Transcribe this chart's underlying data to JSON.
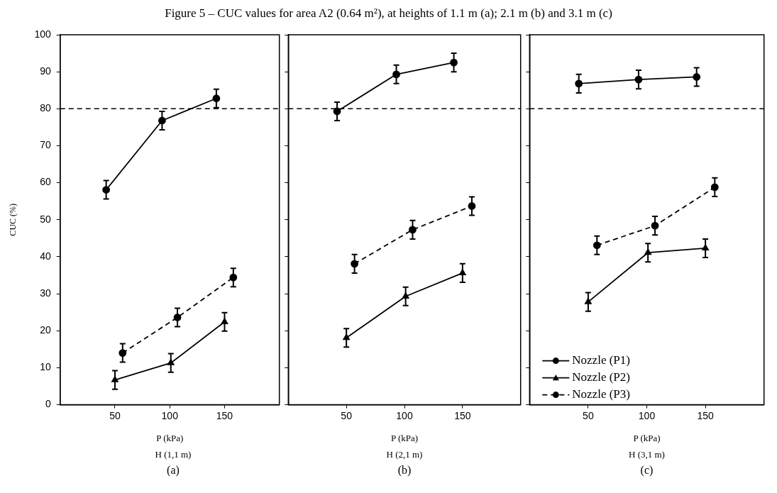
{
  "chart_data": [
    {
      "type": "line",
      "title": "Figure 5 – CUC values for area A2 (0.64 m²), at heights of 1.1 m (a); 2.1 m (b) and 3.1 m (c)",
      "xlabel": "P (kPa)",
      "ylabel": "CUC (%)",
      "annotations": [
        "H (1,1 m)",
        "(a)"
      ],
      "xlim": [
        0,
        200
      ],
      "xticks": [
        50,
        100,
        150
      ],
      "ylim": [
        0,
        100
      ],
      "yticks": [
        0,
        10,
        20,
        30,
        40,
        50,
        60,
        70,
        80,
        90,
        100
      ],
      "ref_lines": [
        {
          "axis": "y",
          "value": 80,
          "line_style": "dashed"
        }
      ],
      "series": [
        {
          "color": "#000000",
          "marker": "circle",
          "line_style": "solid",
          "x": [
            42,
            93,
            142.5
          ],
          "values": [
            58.1,
            76.8,
            82.8
          ],
          "errors": [
            2.5,
            2.5,
            2.5
          ]
        },
        {
          "color": "#000000",
          "marker": "triangle",
          "line_style": "solid",
          "x": [
            50,
            101,
            150
          ],
          "values": [
            6.7,
            11.3,
            22.4
          ],
          "errors": [
            2.5,
            2.5,
            2.5
          ]
        },
        {
          "color": "#000000",
          "marker": "circle",
          "line_style": "dashed",
          "x": [
            57,
            107,
            158
          ],
          "values": [
            14,
            23.6,
            34.4
          ],
          "errors": [
            2.5,
            2.5,
            2.5
          ]
        }
      ]
    },
    {
      "type": "line",
      "xlabel": "P (kPa)",
      "annotations": [
        "H (2,1 m)",
        "(b)"
      ],
      "xlim": [
        0,
        200
      ],
      "xticks": [
        50,
        100,
        150
      ],
      "ylim": [
        0,
        100
      ],
      "yticks": [
        0,
        10,
        20,
        30,
        40,
        50,
        60,
        70,
        80,
        90,
        100
      ],
      "tick_labels": "x",
      "ref_lines": [
        {
          "axis": "y",
          "value": 80,
          "line_style": "dashed"
        }
      ],
      "series": [
        {
          "color": "#000000",
          "marker": "circle",
          "line_style": "solid",
          "x": [
            42,
            93,
            142.5
          ],
          "values": [
            79.3,
            89.3,
            92.5
          ],
          "errors": [
            2.5,
            2.5,
            2.5
          ]
        },
        {
          "color": "#000000",
          "marker": "triangle",
          "line_style": "solid",
          "x": [
            50,
            101,
            150
          ],
          "values": [
            18.1,
            29.3,
            35.6
          ],
          "errors": [
            2.5,
            2.5,
            2.5
          ]
        },
        {
          "color": "#000000",
          "marker": "circle",
          "line_style": "dashed",
          "x": [
            57,
            107,
            158
          ],
          "values": [
            38.1,
            47.3,
            53.7
          ],
          "errors": [
            2.5,
            2.5,
            2.5
          ]
        }
      ]
    },
    {
      "type": "line",
      "xlabel": "P (kPa)",
      "annotations": [
        "H (3,1 m)",
        "(c)"
      ],
      "xlim": [
        0,
        200
      ],
      "xticks": [
        50,
        100,
        150
      ],
      "ylim": [
        0,
        100
      ],
      "yticks": [
        0,
        10,
        20,
        30,
        40,
        50,
        60,
        70,
        80,
        90,
        100
      ],
      "tick_labels": "x",
      "legend": "bottom left",
      "ref_lines": [
        {
          "axis": "y",
          "value": 80,
          "line_style": "dashed"
        }
      ],
      "series": [
        {
          "name": "Nozzle (P1)",
          "color": "#000000",
          "marker": "circle",
          "line_style": "solid",
          "x": [
            42,
            93,
            142.5
          ],
          "values": [
            86.8,
            87.9,
            88.6
          ],
          "errors": [
            2.5,
            2.5,
            2.5
          ]
        },
        {
          "name": "Nozzle (P2)",
          "color": "#000000",
          "marker": "triangle",
          "line_style": "solid",
          "x": [
            50,
            101,
            150
          ],
          "values": [
            27.8,
            41.1,
            42.3
          ],
          "errors": [
            2.5,
            2.5,
            2.5
          ]
        },
        {
          "name": "Nozzle (P3)",
          "color": "#000000",
          "marker": "circle",
          "line_style": "dashed",
          "x": [
            57.5,
            107,
            158
          ],
          "values": [
            43.1,
            48.4,
            58.8
          ],
          "errors": [
            2.5,
            2.5,
            2.5
          ]
        }
      ]
    }
  ]
}
